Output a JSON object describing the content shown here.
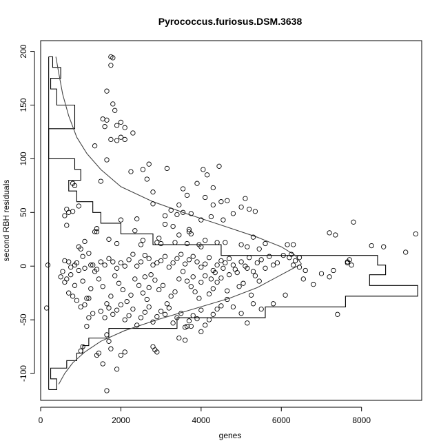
{
  "chart_data": {
    "type": "scatter",
    "title": "Pyrococcus.furiosus.DSM.3638",
    "xlabel": "genes",
    "ylabel": "second RBH residuals",
    "xlim": [
      0,
      9500
    ],
    "ylim": [
      -125,
      210
    ],
    "xticks": [
      0,
      2000,
      4000,
      6000,
      8000
    ],
    "yticks": [
      -100,
      -50,
      0,
      50,
      100,
      150,
      200
    ],
    "grid": false,
    "histogram_overlay": {
      "description_visible": false,
      "bins": [
        {
          "y0": -115,
          "y1": -105,
          "x": 400
        },
        {
          "y0": -105,
          "y1": -95,
          "x": 250
        },
        {
          "y0": -95,
          "y1": -88,
          "x": 650
        },
        {
          "y0": -88,
          "y1": -81,
          "x": 900
        },
        {
          "y0": -81,
          "y1": -74,
          "x": 1050
        },
        {
          "y0": -74,
          "y1": -67,
          "x": 1200
        },
        {
          "y0": -67,
          "y1": -58,
          "x": 1700
        },
        {
          "y0": -58,
          "y1": -48,
          "x": 3400
        },
        {
          "y0": -48,
          "y1": -38,
          "x": 5600
        },
        {
          "y0": -38,
          "y1": -28,
          "x": 7600
        },
        {
          "y0": -28,
          "y1": -18,
          "x": 9400
        },
        {
          "y0": -18,
          "y1": -8,
          "x": 8200
        },
        {
          "y0": -8,
          "y1": 1,
          "x": 8600
        },
        {
          "y0": 1,
          "y1": 10,
          "x": 8400
        },
        {
          "y0": 10,
          "y1": 20,
          "x": 4500
        },
        {
          "y0": 20,
          "y1": 30,
          "x": 2800
        },
        {
          "y0": 30,
          "y1": 40,
          "x": 2000
        },
        {
          "y0": 40,
          "y1": 50,
          "x": 1500
        },
        {
          "y0": 50,
          "y1": 60,
          "x": 1300
        },
        {
          "y0": 60,
          "y1": 70,
          "x": 900
        },
        {
          "y0": 70,
          "y1": 80,
          "x": 700
        },
        {
          "y0": 80,
          "y1": 90,
          "x": 1000
        },
        {
          "y0": 90,
          "y1": 100,
          "x": 850
        },
        {
          "y0": 100,
          "y1": 128,
          "x": 200
        },
        {
          "y0": 128,
          "y1": 150,
          "x": 850
        },
        {
          "y0": 150,
          "y1": 165,
          "x": 400
        },
        {
          "y0": 165,
          "y1": 175,
          "x": 250
        },
        {
          "y0": 175,
          "y1": 185,
          "x": 500
        },
        {
          "y0": 185,
          "y1": 195,
          "x": 300
        }
      ]
    },
    "density_curve": [
      [
        450,
        -110
      ],
      [
        600,
        -100
      ],
      [
        800,
        -90
      ],
      [
        1100,
        -80
      ],
      [
        1500,
        -70
      ],
      [
        2100,
        -60
      ],
      [
        2900,
        -50
      ],
      [
        3800,
        -40
      ],
      [
        4700,
        -30
      ],
      [
        5400,
        -20
      ],
      [
        5900,
        -10
      ],
      [
        6250,
        -3
      ],
      [
        6500,
        2
      ],
      [
        6350,
        10
      ],
      [
        6000,
        18
      ],
      [
        5400,
        27
      ],
      [
        4600,
        37
      ],
      [
        3700,
        48
      ],
      [
        2800,
        60
      ],
      [
        2000,
        74
      ],
      [
        1500,
        90
      ],
      [
        1150,
        105
      ],
      [
        900,
        120
      ],
      [
        700,
        140
      ],
      [
        550,
        160
      ],
      [
        450,
        180
      ],
      [
        380,
        195
      ]
    ],
    "points": [
      [
        1750,
        195
      ],
      [
        1800,
        194
      ],
      [
        1750,
        187
      ],
      [
        1650,
        163
      ],
      [
        1800,
        151
      ],
      [
        1850,
        145
      ],
      [
        1650,
        136
      ],
      [
        2000,
        134
      ],
      [
        1600,
        130
      ],
      [
        1900,
        131
      ],
      [
        2100,
        129
      ],
      [
        2300,
        124
      ],
      [
        1750,
        118
      ],
      [
        1900,
        117
      ],
      [
        2000,
        120
      ],
      [
        1350,
        112
      ],
      [
        1550,
        137
      ],
      [
        2100,
        118
      ],
      [
        1650,
        99
      ],
      [
        2700,
        95
      ],
      [
        2550,
        90
      ],
      [
        2250,
        88
      ],
      [
        3150,
        91
      ],
      [
        4050,
        90
      ],
      [
        4450,
        93
      ],
      [
        4150,
        85
      ],
      [
        2650,
        81
      ],
      [
        3900,
        77
      ],
      [
        1500,
        79
      ],
      [
        2800,
        69
      ],
      [
        3550,
        72
      ],
      [
        3650,
        66
      ],
      [
        4300,
        73
      ],
      [
        4100,
        64
      ],
      [
        4500,
        60
      ],
      [
        4650,
        61
      ],
      [
        5100,
        63
      ],
      [
        4300,
        57
      ],
      [
        3450,
        57
      ],
      [
        5000,
        55
      ],
      [
        5200,
        53
      ],
      [
        5350,
        51
      ],
      [
        4800,
        49
      ],
      [
        3550,
        50
      ],
      [
        3750,
        49
      ],
      [
        2800,
        58
      ],
      [
        3250,
        52
      ],
      [
        3400,
        48
      ],
      [
        3100,
        47
      ],
      [
        4000,
        43
      ],
      [
        4250,
        46
      ],
      [
        4550,
        43
      ],
      [
        650,
        53
      ],
      [
        700,
        50
      ],
      [
        600,
        47
      ],
      [
        800,
        51
      ],
      [
        650,
        38
      ],
      [
        2400,
        44
      ],
      [
        3100,
        39
      ],
      [
        3300,
        37
      ],
      [
        3700,
        32
      ],
      [
        3450,
        29
      ],
      [
        2000,
        43
      ],
      [
        2350,
        33
      ],
      [
        1400,
        32
      ],
      [
        1400,
        35
      ],
      [
        3700,
        34
      ],
      [
        3750,
        30
      ],
      [
        2950,
        26
      ],
      [
        2550,
        24
      ],
      [
        2900,
        22
      ],
      [
        3000,
        21
      ],
      [
        3350,
        22
      ],
      [
        1700,
        25
      ],
      [
        2500,
        20
      ],
      [
        1100,
        23
      ],
      [
        1900,
        21
      ],
      [
        3650,
        21
      ],
      [
        3950,
        20
      ],
      [
        4000,
        18
      ],
      [
        4100,
        24
      ],
      [
        4400,
        22
      ],
      [
        4600,
        22
      ],
      [
        5000,
        20
      ],
      [
        5300,
        27
      ],
      [
        5150,
        18
      ],
      [
        5450,
        16
      ],
      [
        5600,
        21
      ],
      [
        6150,
        20
      ],
      [
        6300,
        20
      ],
      [
        6050,
        10
      ],
      [
        6200,
        8
      ],
      [
        6250,
        11
      ],
      [
        6350,
        5
      ],
      [
        7200,
        31
      ],
      [
        7350,
        29
      ],
      [
        7700,
        6
      ],
      [
        7800,
        41
      ],
      [
        8250,
        19
      ],
      [
        8550,
        18
      ],
      [
        9100,
        13
      ],
      [
        9350,
        30
      ],
      [
        7650,
        3
      ],
      [
        7750,
        1
      ],
      [
        7650,
        4
      ],
      [
        7200,
        -10
      ],
      [
        7300,
        -4
      ],
      [
        7000,
        -7
      ],
      [
        6550,
        -12
      ],
      [
        6800,
        -17
      ],
      [
        6450,
        -1
      ],
      [
        6300,
        1
      ],
      [
        5900,
        3
      ],
      [
        5800,
        1
      ],
      [
        5600,
        -2
      ],
      [
        5450,
        -14
      ],
      [
        5350,
        -9
      ],
      [
        5300,
        -5
      ],
      [
        5150,
        -2
      ],
      [
        5050,
        -16
      ],
      [
        4950,
        -19
      ],
      [
        4850,
        -3
      ],
      [
        4700,
        -8
      ],
      [
        4550,
        -2
      ],
      [
        4500,
        -11
      ],
      [
        4400,
        -15
      ],
      [
        4300,
        -21
      ],
      [
        4200,
        -26
      ],
      [
        4100,
        -9
      ],
      [
        4000,
        -15
      ],
      [
        3950,
        -30
      ],
      [
        3850,
        -24
      ],
      [
        3750,
        -19
      ],
      [
        3650,
        -14
      ],
      [
        3550,
        -5
      ],
      [
        3450,
        -12
      ],
      [
        3350,
        -24
      ],
      [
        3250,
        -28
      ],
      [
        3150,
        -35
      ],
      [
        3050,
        -18
      ],
      [
        2950,
        -22
      ],
      [
        2850,
        -13
      ],
      [
        2750,
        -8
      ],
      [
        2650,
        -31
      ],
      [
        2550,
        -25
      ],
      [
        2450,
        -18
      ],
      [
        2350,
        -12
      ],
      [
        2250,
        -27
      ],
      [
        2150,
        -33
      ],
      [
        2050,
        -22
      ],
      [
        1950,
        -16
      ],
      [
        1850,
        -9
      ],
      [
        1750,
        -28
      ],
      [
        1650,
        -35
      ],
      [
        1550,
        -19
      ],
      [
        1450,
        -12
      ],
      [
        1350,
        -5
      ],
      [
        1250,
        -21
      ],
      [
        1150,
        -30
      ],
      [
        1050,
        -14
      ],
      [
        950,
        -4
      ],
      [
        850,
        -18
      ],
      [
        750,
        -8
      ],
      [
        650,
        -12
      ],
      [
        600,
        -15
      ],
      [
        700,
        -25
      ],
      [
        800,
        -28
      ],
      [
        900,
        -32
      ],
      [
        1000,
        -38
      ],
      [
        1100,
        -36
      ],
      [
        1200,
        -30
      ],
      [
        1300,
        -44
      ],
      [
        1500,
        -42
      ],
      [
        1600,
        -48
      ],
      [
        1700,
        -39
      ],
      [
        1800,
        -45
      ],
      [
        1900,
        -41
      ],
      [
        2000,
        -36
      ],
      [
        2100,
        -50
      ],
      [
        2200,
        -46
      ],
      [
        2300,
        -40
      ],
      [
        2400,
        -55
      ],
      [
        2500,
        -48
      ],
      [
        2600,
        -43
      ],
      [
        2700,
        -38
      ],
      [
        2800,
        -52
      ],
      [
        2900,
        -47
      ],
      [
        3000,
        -42
      ],
      [
        3100,
        -45
      ],
      [
        3200,
        -39
      ],
      [
        3300,
        -53
      ],
      [
        3400,
        -48
      ],
      [
        3500,
        -44
      ],
      [
        3600,
        -57
      ],
      [
        3700,
        -51
      ],
      [
        3800,
        -46
      ],
      [
        3900,
        -49
      ],
      [
        4000,
        -41
      ],
      [
        4100,
        -55
      ],
      [
        4200,
        -50
      ],
      [
        4300,
        -45
      ],
      [
        4400,
        -40
      ],
      [
        4500,
        -37
      ],
      [
        4650,
        -31
      ],
      [
        4800,
        -38
      ],
      [
        5000,
        -44
      ],
      [
        5150,
        -53
      ],
      [
        5300,
        -35
      ],
      [
        5500,
        -40
      ],
      [
        3750,
        -56
      ],
      [
        3650,
        -56
      ],
      [
        3450,
        -67
      ],
      [
        3600,
        -69
      ],
      [
        4000,
        -61
      ],
      [
        2900,
        -80
      ],
      [
        2800,
        -75
      ],
      [
        2850,
        -78
      ],
      [
        2000,
        -83
      ],
      [
        2100,
        -80
      ],
      [
        1900,
        -96
      ],
      [
        1750,
        -77
      ],
      [
        1700,
        -70
      ],
      [
        1650,
        -64
      ],
      [
        1050,
        -75
      ],
      [
        1400,
        -83
      ],
      [
        1450,
        -81
      ],
      [
        1550,
        -91
      ],
      [
        1650,
        -116
      ],
      [
        1000,
        -79
      ],
      [
        1150,
        -56
      ],
      [
        1200,
        -48
      ],
      [
        180,
        1
      ],
      [
        150,
        -39
      ],
      [
        600,
        5
      ],
      [
        700,
        4
      ],
      [
        500,
        -10
      ],
      [
        550,
        -5
      ],
      [
        750,
        -1
      ],
      [
        850,
        1
      ],
      [
        900,
        3
      ],
      [
        950,
        18
      ],
      [
        1000,
        16
      ],
      [
        1050,
        9
      ],
      [
        1100,
        -2
      ],
      [
        1200,
        12
      ],
      [
        1300,
        1
      ],
      [
        1400,
        -3
      ],
      [
        1500,
        4
      ],
      [
        1600,
        1
      ],
      [
        1700,
        7
      ],
      [
        1800,
        4
      ],
      [
        1900,
        -2
      ],
      [
        2000,
        3
      ],
      [
        2100,
        0
      ],
      [
        2200,
        6
      ],
      [
        2300,
        11
      ],
      [
        2400,
        0
      ],
      [
        2500,
        4
      ],
      [
        2600,
        10
      ],
      [
        2700,
        7
      ],
      [
        2800,
        1
      ],
      [
        2900,
        3
      ],
      [
        3000,
        5
      ],
      [
        3100,
        9
      ],
      [
        3200,
        -1
      ],
      [
        3300,
        3
      ],
      [
        3400,
        7
      ],
      [
        3500,
        11
      ],
      [
        3600,
        2
      ],
      [
        3700,
        6
      ],
      [
        3800,
        9
      ],
      [
        3900,
        4
      ],
      [
        4000,
        -1
      ],
      [
        4100,
        2
      ],
      [
        4200,
        8
      ],
      [
        4300,
        -4
      ],
      [
        4400,
        1
      ],
      [
        4500,
        5
      ],
      [
        4600,
        3
      ],
      [
        4700,
        7
      ],
      [
        4800,
        1
      ],
      [
        4900,
        -6
      ],
      [
        5000,
        4
      ],
      [
        5100,
        0
      ],
      [
        5200,
        8
      ],
      [
        5400,
        3
      ],
      [
        5500,
        6
      ],
      [
        5700,
        9
      ],
      [
        800,
        77
      ],
      [
        850,
        75
      ],
      [
        950,
        56
      ],
      [
        1350,
        32
      ],
      [
        1250,
        1
      ],
      [
        2600,
        -10
      ],
      [
        2700,
        -20
      ],
      [
        3800,
        -10
      ],
      [
        4250,
        -12
      ],
      [
        4350,
        -6
      ],
      [
        4650,
        -23
      ],
      [
        5250,
        -27
      ],
      [
        6600,
        -4
      ],
      [
        7400,
        -45
      ],
      [
        6450,
        8
      ],
      [
        6100,
        -27
      ],
      [
        5800,
        -35
      ]
    ]
  }
}
